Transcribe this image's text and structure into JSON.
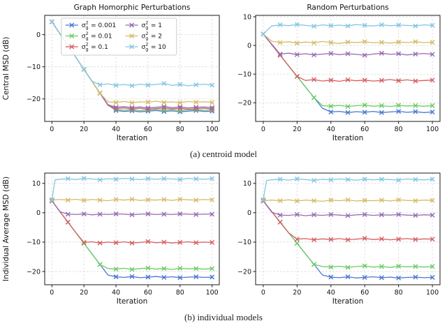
{
  "figure": {
    "captions": {
      "a": "(a) centroid model",
      "b": "(b) individual models"
    }
  },
  "chart_data": [
    {
      "type": "line",
      "title": "Graph Homorphic Perturbations",
      "xlabel": "Iteration",
      "ylabel": "Central MSD (dB)",
      "xlim": [
        -4.5,
        104.5
      ],
      "ylim": [
        -27,
        6
      ],
      "xticks": [
        0,
        20,
        40,
        60,
        80,
        100
      ],
      "yticks": [
        0,
        -10,
        -20
      ],
      "grid": true,
      "legend": true,
      "legend_columns": 2,
      "marker": "x",
      "marker_every_x": 10,
      "x": [
        0,
        5,
        10,
        15,
        20,
        25,
        30,
        35,
        40,
        45,
        50,
        55,
        60,
        65,
        70,
        75,
        80,
        85,
        90,
        95,
        100
      ],
      "series": [
        {
          "name": "σ_g^2 = 0.001",
          "color": "#4878d0",
          "values": [
            4.0,
            0.3,
            -3.4,
            -7.1,
            -10.8,
            -14.5,
            -18.2,
            -21.9,
            -23.6,
            -23.9,
            -23.7,
            -24.0,
            -23.8,
            -23.6,
            -23.9,
            -23.7,
            -24.0,
            -23.8,
            -23.6,
            -23.9,
            -23.8
          ]
        },
        {
          "name": "σ_g^2 = 0.01",
          "color": "#6acc64",
          "values": [
            4.0,
            0.3,
            -3.4,
            -7.1,
            -10.8,
            -14.5,
            -18.2,
            -21.9,
            -23.2,
            -23.5,
            -23.3,
            -23.6,
            -23.4,
            -23.2,
            -23.5,
            -23.3,
            -23.6,
            -23.4,
            -23.3,
            -23.5,
            -23.4
          ]
        },
        {
          "name": "σ_g^2 = 0.1",
          "color": "#d65f5f",
          "values": [
            4.0,
            0.3,
            -3.4,
            -7.1,
            -10.8,
            -14.5,
            -18.2,
            -22.0,
            -23.0,
            -22.8,
            -23.1,
            -22.9,
            -23.2,
            -23.0,
            -22.8,
            -23.1,
            -22.9,
            -23.2,
            -23.0,
            -22.9,
            -23.1
          ]
        },
        {
          "name": "σ_g^2 = 1",
          "color": "#956cb4",
          "values": [
            4.0,
            0.3,
            -3.4,
            -7.1,
            -10.8,
            -14.5,
            -18.2,
            -21.8,
            -22.6,
            -22.4,
            -22.7,
            -22.5,
            -22.8,
            -22.6,
            -22.4,
            -22.7,
            -22.5,
            -22.8,
            -22.6,
            -22.5,
            -22.7
          ]
        },
        {
          "name": "σ_g^2 = 2",
          "color": "#d5bb67",
          "values": [
            4.0,
            0.3,
            -3.4,
            -7.1,
            -10.8,
            -14.5,
            -18.2,
            -20.9,
            -21.1,
            -20.8,
            -21.2,
            -20.9,
            -21.0,
            -20.7,
            -21.1,
            -20.9,
            -21.2,
            -20.8,
            -21.0,
            -20.9,
            -21.1
          ]
        },
        {
          "name": "σ_g^2 = 10",
          "color": "#82c6e2",
          "values": [
            4.0,
            0.3,
            -3.4,
            -7.1,
            -10.8,
            -14.5,
            -15.6,
            -15.3,
            -15.8,
            -15.5,
            -15.9,
            -15.4,
            -15.7,
            -15.5,
            -15.2,
            -15.8,
            -15.5,
            -15.9,
            -15.6,
            -15.4,
            -15.7
          ]
        }
      ]
    },
    {
      "type": "line",
      "title": "Random Perturbations",
      "xlabel": "Iteration",
      "ylabel": "",
      "xlim": [
        -4.5,
        104.5
      ],
      "ylim": [
        -26.5,
        10.5
      ],
      "xticks": [
        0,
        20,
        40,
        60,
        80,
        100
      ],
      "yticks": [
        10,
        0,
        -10,
        -20
      ],
      "grid": true,
      "legend": false,
      "legend_columns": 2,
      "marker": "x",
      "marker_every_x": 10,
      "x": [
        0,
        5,
        10,
        15,
        20,
        25,
        30,
        35,
        40,
        45,
        50,
        55,
        60,
        65,
        70,
        75,
        80,
        85,
        90,
        95,
        100
      ],
      "series": [
        {
          "name": "σ_g^2 = 0.001",
          "color": "#4878d0",
          "values": [
            4.0,
            0.3,
            -3.4,
            -7.1,
            -10.8,
            -14.5,
            -18.2,
            -21.9,
            -23.2,
            -23.0,
            -23.4,
            -23.1,
            -23.3,
            -23.0,
            -23.4,
            -23.2,
            -23.0,
            -23.3,
            -23.1,
            -23.4,
            -23.2
          ]
        },
        {
          "name": "σ_g^2 = 0.01",
          "color": "#6acc64",
          "values": [
            4.0,
            0.3,
            -3.4,
            -7.1,
            -10.8,
            -14.5,
            -18.2,
            -21.0,
            -21.2,
            -20.9,
            -21.3,
            -21.0,
            -20.8,
            -21.2,
            -21.0,
            -21.3,
            -20.9,
            -21.1,
            -21.0,
            -21.2,
            -21.0
          ]
        },
        {
          "name": "σ_g^2 = 0.1",
          "color": "#d65f5f",
          "values": [
            4.0,
            0.3,
            -3.4,
            -7.1,
            -10.8,
            -12.2,
            -11.9,
            -12.4,
            -12.1,
            -12.5,
            -12.0,
            -12.3,
            -12.1,
            -12.4,
            -12.2,
            -11.9,
            -12.3,
            -12.0,
            -12.4,
            -12.2,
            -12.1
          ]
        },
        {
          "name": "σ_g^2 = 1",
          "color": "#956cb4",
          "values": [
            4.0,
            0.5,
            -3.0,
            -2.7,
            -3.2,
            -2.9,
            -3.3,
            -3.0,
            -2.8,
            -3.2,
            -2.9,
            -3.1,
            -3.4,
            -3.0,
            -2.7,
            -3.1,
            -2.9,
            -3.3,
            -3.0,
            -2.8,
            -3.1
          ]
        },
        {
          "name": "σ_g^2 = 2",
          "color": "#d5bb67",
          "values": [
            4.0,
            1.5,
            1.0,
            1.3,
            0.8,
            1.2,
            0.9,
            1.4,
            1.0,
            0.7,
            1.2,
            1.0,
            1.3,
            0.9,
            1.1,
            0.8,
            1.2,
            1.0,
            1.3,
            1.0,
            1.1
          ]
        },
        {
          "name": "σ_g^2 = 10",
          "color": "#82c6e2",
          "values": [
            4.0,
            6.8,
            7.2,
            6.9,
            7.3,
            7.0,
            6.7,
            7.2,
            6.9,
            7.1,
            6.8,
            7.3,
            7.0,
            6.8,
            7.2,
            6.9,
            7.1,
            7.0,
            6.8,
            7.2,
            7.0
          ]
        }
      ]
    },
    {
      "type": "line",
      "title": "",
      "xlabel": "Iteration",
      "ylabel": "Individual Average MSD (dB)",
      "xlim": [
        -4.5,
        104.5
      ],
      "ylim": [
        -24.5,
        13.5
      ],
      "xticks": [
        0,
        20,
        40,
        60,
        80,
        100
      ],
      "yticks": [
        10,
        0,
        -10,
        -20
      ],
      "grid": true,
      "legend": false,
      "legend_columns": 2,
      "marker": "x",
      "marker_every_x": 10,
      "x": [
        0,
        2,
        5,
        10,
        15,
        20,
        25,
        30,
        35,
        40,
        45,
        50,
        55,
        60,
        65,
        70,
        75,
        80,
        85,
        90,
        95,
        100
      ],
      "series": [
        {
          "name": "σ_g^2 = 0.001",
          "color": "#4878d0",
          "values": [
            4.0,
            2.6,
            0.4,
            -3.2,
            -6.8,
            -10.4,
            -14.0,
            -17.6,
            -21.2,
            -21.8,
            -22.0,
            -21.7,
            -22.1,
            -21.9,
            -21.7,
            -22.0,
            -21.8,
            -22.1,
            -21.9,
            -21.8,
            -22.0,
            -21.9
          ]
        },
        {
          "name": "σ_g^2 = 0.01",
          "color": "#6acc64",
          "values": [
            4.0,
            2.6,
            0.4,
            -3.2,
            -6.8,
            -10.4,
            -14.0,
            -17.6,
            -19.0,
            -19.2,
            -18.9,
            -19.3,
            -19.0,
            -18.8,
            -19.2,
            -19.0,
            -19.3,
            -18.9,
            -19.1,
            -19.0,
            -19.2,
            -19.0
          ]
        },
        {
          "name": "σ_g^2 = 0.1",
          "color": "#d65f5f",
          "values": [
            4.0,
            2.6,
            0.4,
            -3.2,
            -6.8,
            -10.1,
            -9.9,
            -10.3,
            -10.0,
            -10.2,
            -9.9,
            -10.3,
            -10.1,
            -9.8,
            -10.2,
            -10.0,
            -10.3,
            -10.1,
            -9.9,
            -10.2,
            -10.0,
            -10.1
          ]
        },
        {
          "name": "σ_g^2 = 1",
          "color": "#956cb4",
          "values": [
            4.0,
            2.6,
            0.4,
            -0.5,
            -0.6,
            -0.4,
            -0.7,
            -0.5,
            -0.6,
            -0.4,
            -0.5,
            -0.7,
            -0.5,
            -0.4,
            -0.6,
            -0.5,
            -0.6,
            -0.4,
            -0.5,
            -0.6,
            -0.5,
            -0.5
          ]
        },
        {
          "name": "σ_g^2 = 2",
          "color": "#d5bb67",
          "values": [
            4.2,
            4.4,
            4.5,
            4.3,
            4.6,
            4.2,
            4.5,
            4.3,
            4.1,
            4.5,
            4.3,
            4.6,
            4.2,
            4.4,
            4.3,
            4.5,
            4.2,
            4.6,
            4.4,
            4.3,
            4.5,
            4.4
          ]
        },
        {
          "name": "σ_g^2 = 10",
          "color": "#82c6e2",
          "values": [
            4.5,
            11.2,
            11.4,
            11.6,
            11.3,
            11.7,
            11.5,
            11.2,
            11.6,
            11.4,
            11.7,
            11.5,
            11.3,
            11.6,
            11.4,
            11.6,
            11.5,
            11.3,
            11.7,
            11.5,
            11.4,
            11.6
          ]
        }
      ]
    },
    {
      "type": "line",
      "title": "",
      "xlabel": "Iteration",
      "ylabel": "",
      "xlim": [
        -4.5,
        104.5
      ],
      "ylim": [
        -24.5,
        13.5
      ],
      "xticks": [
        0,
        20,
        40,
        60,
        80,
        100
      ],
      "yticks": [
        10,
        0,
        -10,
        -20
      ],
      "grid": true,
      "legend": false,
      "legend_columns": 2,
      "marker": "x",
      "marker_every_x": 10,
      "x": [
        0,
        2,
        5,
        10,
        15,
        20,
        25,
        30,
        35,
        40,
        45,
        50,
        55,
        60,
        65,
        70,
        75,
        80,
        85,
        90,
        95,
        100
      ],
      "series": [
        {
          "name": "σ_g^2 = 0.001",
          "color": "#4878d0",
          "values": [
            4.0,
            2.6,
            0.4,
            -3.2,
            -6.8,
            -10.4,
            -14.0,
            -17.6,
            -21.2,
            -21.9,
            -22.1,
            -21.8,
            -22.2,
            -22.0,
            -21.8,
            -22.1,
            -21.9,
            -22.2,
            -22.0,
            -21.9,
            -22.1,
            -22.0
          ]
        },
        {
          "name": "σ_g^2 = 0.01",
          "color": "#6acc64",
          "values": [
            4.0,
            2.6,
            0.4,
            -3.2,
            -6.8,
            -10.4,
            -14.0,
            -17.6,
            -18.3,
            -18.5,
            -18.2,
            -18.6,
            -18.3,
            -18.1,
            -18.5,
            -18.3,
            -18.6,
            -18.2,
            -18.4,
            -18.3,
            -18.5,
            -18.3
          ]
        },
        {
          "name": "σ_g^2 = 0.1",
          "color": "#d65f5f",
          "values": [
            4.0,
            2.6,
            0.4,
            -3.2,
            -6.8,
            -9.0,
            -8.8,
            -9.2,
            -8.9,
            -9.1,
            -8.8,
            -9.2,
            -9.0,
            -8.7,
            -9.1,
            -8.9,
            -9.2,
            -9.0,
            -8.8,
            -9.1,
            -8.9,
            -9.0
          ]
        },
        {
          "name": "σ_g^2 = 1",
          "color": "#956cb4",
          "values": [
            4.0,
            2.5,
            0.2,
            -0.8,
            -0.9,
            -0.6,
            -1.0,
            -0.7,
            -0.9,
            -0.6,
            -0.8,
            -1.0,
            -0.7,
            -0.6,
            -0.9,
            -0.7,
            -0.8,
            -0.6,
            -0.8,
            -0.9,
            -0.7,
            -0.8
          ]
        },
        {
          "name": "σ_g^2 = 2",
          "color": "#d5bb67",
          "values": [
            4.2,
            4.2,
            4.3,
            4.1,
            4.4,
            4.0,
            4.3,
            4.1,
            3.9,
            4.3,
            4.1,
            4.4,
            4.0,
            4.2,
            4.1,
            4.3,
            4.0,
            4.4,
            4.2,
            4.1,
            4.3,
            4.2
          ]
        },
        {
          "name": "σ_g^2 = 10",
          "color": "#82c6e2",
          "values": [
            4.5,
            11.0,
            11.2,
            11.4,
            11.1,
            11.5,
            11.3,
            11.0,
            11.4,
            11.2,
            11.5,
            11.3,
            11.1,
            11.4,
            11.2,
            11.4,
            11.3,
            11.1,
            11.5,
            11.3,
            11.2,
            11.4
          ]
        }
      ]
    }
  ]
}
